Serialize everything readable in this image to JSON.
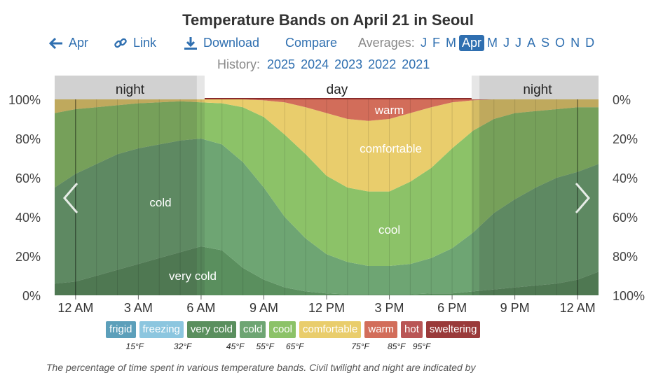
{
  "title": "Temperature Bands on April 21 in Seoul",
  "nav": {
    "prev_label": "Apr",
    "link_label": "Link",
    "download_label": "Download",
    "compare_label": "Compare",
    "averages_label": "Averages:",
    "months": [
      "J",
      "F",
      "M",
      "Apr",
      "M",
      "J",
      "J",
      "A",
      "S",
      "O",
      "N",
      "D"
    ],
    "active_month": "Apr",
    "history_label": "History:",
    "history_years": [
      "2025",
      "2024",
      "2023",
      "2022",
      "2021"
    ]
  },
  "legend": {
    "bands": [
      {
        "label": "frigid",
        "color": "#5c9fba"
      },
      {
        "label": "freezing",
        "color": "#8cc6df"
      },
      {
        "label": "very cold",
        "color": "#5a8f5e"
      },
      {
        "label": "cold",
        "color": "#6ea573"
      },
      {
        "label": "cool",
        "color": "#8cc268"
      },
      {
        "label": "comfortable",
        "color": "#e9cd6c"
      },
      {
        "label": "warm",
        "color": "#d26d5a"
      },
      {
        "label": "hot",
        "color": "#b95555"
      },
      {
        "label": "sweltering",
        "color": "#9a3a3a"
      }
    ],
    "thresholds": [
      "15°F",
      "32°F",
      "45°F",
      "55°F",
      "65°F",
      "75°F",
      "85°F",
      "95°F"
    ]
  },
  "footer_text": "The percentage of time spent in various temperature bands. Civil twilight and night are indicated by",
  "chart_data": {
    "type": "area",
    "title": "Temperature Bands on April 21 in Seoul",
    "x_unit": "hour of day",
    "x": [
      -1,
      0,
      1,
      2,
      3,
      4,
      5,
      6,
      7,
      8,
      9,
      10,
      11,
      12,
      13,
      14,
      15,
      16,
      17,
      18,
      19,
      20,
      21,
      22,
      23,
      24,
      25
    ],
    "x_tick_labels": [
      "12 AM",
      "3 AM",
      "6 AM",
      "9 AM",
      "12 PM",
      "3 PM",
      "6 PM",
      "9 PM",
      "12 AM"
    ],
    "x_tick_hours": [
      0,
      3,
      6,
      9,
      12,
      15,
      18,
      21,
      24
    ],
    "y_left_ticks": [
      "0%",
      "20%",
      "40%",
      "60%",
      "80%",
      "100%"
    ],
    "y_right_ticks": [
      "100%",
      "80%",
      "60%",
      "40%",
      "20%",
      "0%"
    ],
    "ylim": [
      0,
      100
    ],
    "series": [
      {
        "name": "very cold",
        "values": [
          6,
          7,
          10,
          13,
          16,
          19,
          22,
          25,
          23,
          14,
          8,
          4,
          2,
          1,
          0.5,
          0.5,
          0.5,
          0.5,
          1,
          1,
          2,
          3,
          4,
          5,
          6,
          8,
          12
        ]
      },
      {
        "name": "cold",
        "values": [
          55,
          62,
          67,
          72,
          75,
          77,
          79,
          80,
          77,
          68,
          55,
          40,
          29,
          21,
          17,
          15,
          15,
          16,
          19,
          24,
          32,
          42,
          49,
          55,
          60,
          63,
          67
        ]
      },
      {
        "name": "cool",
        "values": [
          93,
          95,
          96,
          97,
          98,
          98.5,
          99,
          98.5,
          98,
          96,
          91,
          82,
          72,
          61,
          55,
          53,
          53,
          58,
          65,
          75,
          84,
          90,
          93,
          94,
          95,
          96,
          96
        ]
      },
      {
        "name": "comfortable",
        "values": [
          100,
          100,
          100,
          100,
          100,
          100,
          100,
          100,
          100,
          100,
          99.5,
          98.5,
          96,
          93,
          90,
          89,
          90,
          93,
          96,
          98.5,
          99.5,
          100,
          100,
          100,
          100,
          100,
          100
        ]
      },
      {
        "name": "warm",
        "values": [
          100,
          100,
          100,
          100,
          100,
          100,
          100,
          100,
          100,
          100,
          100,
          100,
          100,
          100,
          100,
          100,
          100,
          100,
          100,
          100,
          100,
          100,
          100,
          100,
          100,
          100,
          100
        ]
      }
    ],
    "day_labels": [
      "night",
      "day",
      "night"
    ],
    "band_labels": [
      "warm",
      "comfortable",
      "cool",
      "cold",
      "very cold"
    ],
    "night_start_hour": 19.3,
    "night_end_hour": 5.8,
    "grid": true,
    "legend_position": "bottom"
  }
}
